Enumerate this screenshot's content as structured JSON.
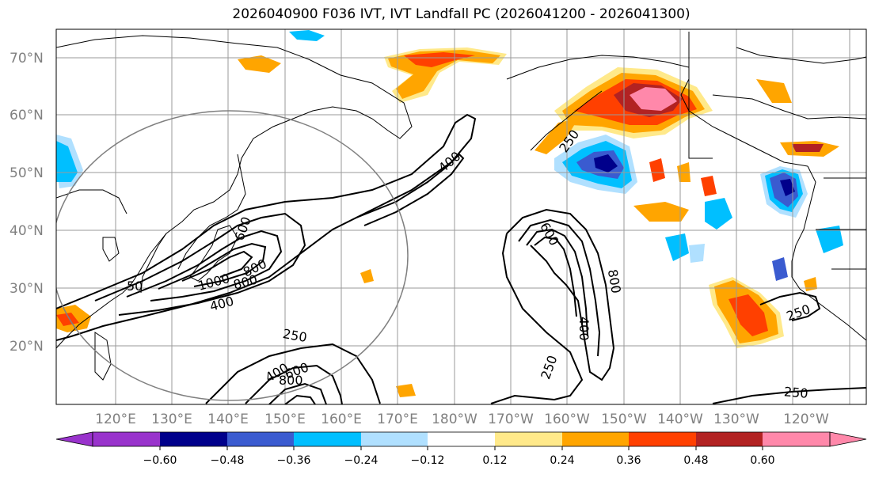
{
  "title": "2026040900 F036 IVT, IVT Landfall PC (2026041200 - 2026041300)",
  "lat_labels": [
    "70°N",
    "60°N",
    "50°N",
    "40°N",
    "30°N",
    "20°N"
  ],
  "lon_labels": [
    "120°E",
    "130°E",
    "140°E",
    "150°E",
    "160°E",
    "170°E",
    "180°W",
    "170°W",
    "160°W",
    "150°W",
    "140°W",
    "130°W",
    "120°W"
  ],
  "colorbar": {
    "ticks": [
      "−0.60",
      "−0.48",
      "−0.36",
      "−0.24",
      "−0.12",
      "0.12",
      "0.24",
      "0.36",
      "0.48",
      "0.60"
    ],
    "colors": [
      "#9933cc",
      "#00008b",
      "#3a5bd0",
      "#00bfff",
      "#b0e0ff",
      "#ffffff",
      "#ffe98a",
      "#ffa500",
      "#ff4000",
      "#b22222",
      "#ff88aa"
    ]
  },
  "contour_labels": [
    "400",
    "600",
    "250",
    "800",
    "50",
    "1000",
    "800",
    "400",
    "600",
    "250",
    "800",
    "400",
    "250",
    "250",
    "800",
    "400",
    "600",
    "250"
  ],
  "colors": {
    "yellow": "#ffe98a",
    "orange": "#ffa500",
    "red": "#ff4000",
    "darkred": "#b22222",
    "pink": "#ff88aa",
    "lightblue": "#b0e0ff",
    "cyan": "#00bfff",
    "blue": "#3a5bd0",
    "navy": "#00008b"
  }
}
